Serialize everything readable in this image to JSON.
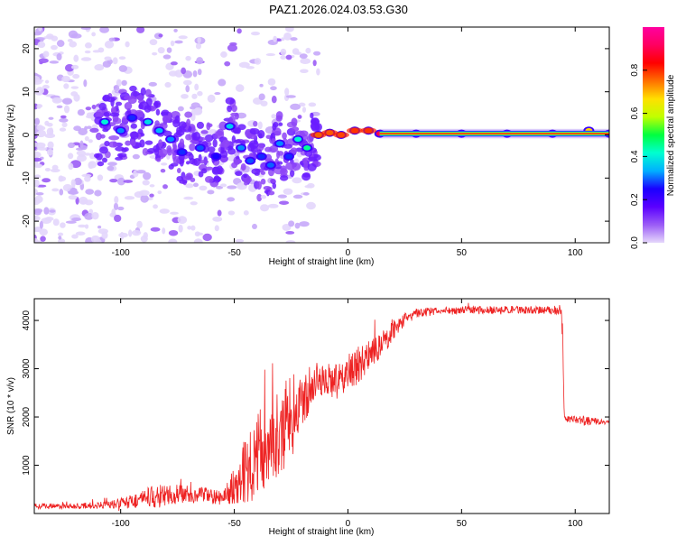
{
  "title": "PAZ1.2026.024.03.53.G30",
  "chart_data": [
    {
      "type": "heatmap",
      "xlabel": "Height of straight line (km)",
      "ylabel": "Frequency (Hz)",
      "xlim": [
        -138,
        115
      ],
      "ylim": [
        -25,
        25
      ],
      "xticks": [
        -100,
        -50,
        0,
        50,
        100
      ],
      "yticks": [
        -20,
        -10,
        0,
        10,
        20
      ],
      "colorbar": {
        "label": "Normalized spectral amplitude",
        "range": [
          0,
          1
        ],
        "ticks": [
          "0.0",
          "0.2",
          "0.4",
          "0.6",
          "0.8"
        ],
        "tick_values": [
          0.0,
          0.2,
          0.4,
          0.6,
          0.8
        ],
        "stops": [
          "#e6d8fb",
          "#9b5cf6",
          "#5a00ff",
          "#1a00ff",
          "#00b0ff",
          "#00ffd0",
          "#00ff40",
          "#c0ff00",
          "#ffe000",
          "#ff7000",
          "#ff0000",
          "#ff0060",
          "#ff00a0"
        ]
      },
      "track": [
        {
          "x": -107,
          "y": 3,
          "v": 0.45
        },
        {
          "x": -100,
          "y": 1,
          "v": 0.35
        },
        {
          "x": -95,
          "y": 4,
          "v": 0.3
        },
        {
          "x": -88,
          "y": 3,
          "v": 0.42
        },
        {
          "x": -83,
          "y": 1,
          "v": 0.38
        },
        {
          "x": -78,
          "y": -1,
          "v": 0.35
        },
        {
          "x": -73,
          "y": -4,
          "v": 0.3
        },
        {
          "x": -65,
          "y": -3,
          "v": 0.32
        },
        {
          "x": -58,
          "y": -5,
          "v": 0.28
        },
        {
          "x": -52,
          "y": 2,
          "v": 0.4
        },
        {
          "x": -47,
          "y": -3,
          "v": 0.35
        },
        {
          "x": -43,
          "y": -6,
          "v": 0.32
        },
        {
          "x": -38,
          "y": -5,
          "v": 0.3
        },
        {
          "x": -34,
          "y": -7,
          "v": 0.33
        },
        {
          "x": -30,
          "y": -2,
          "v": 0.35
        },
        {
          "x": -26,
          "y": -5,
          "v": 0.3
        },
        {
          "x": -22,
          "y": -1,
          "v": 0.45
        },
        {
          "x": -18,
          "y": -3,
          "v": 0.5
        },
        {
          "x": -13,
          "y": 0,
          "v": 0.7
        },
        {
          "x": -8,
          "y": 0.5,
          "v": 0.75
        },
        {
          "x": -3,
          "y": 0,
          "v": 0.8
        },
        {
          "x": 3,
          "y": 1,
          "v": 0.85
        },
        {
          "x": 9,
          "y": 1,
          "v": 0.85
        },
        {
          "x": 14,
          "y": 0.3,
          "v": 1.0
        },
        {
          "x": 30,
          "y": 0.3,
          "v": 1.0
        },
        {
          "x": 50,
          "y": 0.3,
          "v": 1.0
        },
        {
          "x": 70,
          "y": 0.3,
          "v": 1.0
        },
        {
          "x": 90,
          "y": 0.3,
          "v": 1.0
        },
        {
          "x": 106,
          "y": 1,
          "v": 0.75
        },
        {
          "x": 115,
          "y": 0.3,
          "v": 1.0
        }
      ]
    },
    {
      "type": "line",
      "xlabel": "Height of straight line (km)",
      "ylabel": "SNR (10 * v/v)",
      "xlim": [
        -138,
        115
      ],
      "ylim": [
        0,
        4450
      ],
      "xticks": [
        -100,
        -50,
        0,
        50,
        100
      ],
      "yticks": [
        1000,
        2000,
        3000,
        4000
      ],
      "color": "#ee2222",
      "series": [
        {
          "name": "SNR",
          "x": [
            -138,
            -120,
            -105,
            -95,
            -85,
            -75,
            -65,
            -55,
            -50,
            -45,
            -40,
            -35,
            -30,
            -25,
            -22,
            -20,
            -18,
            -15,
            -10,
            -5,
            0,
            5,
            10,
            15,
            20,
            25,
            30,
            40,
            50,
            60,
            70,
            80,
            90,
            94,
            95,
            100,
            105,
            110,
            115
          ],
          "y": [
            150,
            150,
            180,
            250,
            350,
            400,
            380,
            320,
            600,
            900,
            1200,
            1500,
            1700,
            2000,
            2200,
            2300,
            2500,
            2700,
            2800,
            2700,
            2900,
            3100,
            3300,
            3500,
            3800,
            4000,
            4150,
            4200,
            4220,
            4220,
            4220,
            4220,
            4200,
            4200,
            1950,
            1950,
            1920,
            1900,
            1900
          ],
          "noise": [
            60,
            60,
            80,
            150,
            250,
            200,
            180,
            150,
            400,
            700,
            900,
            900,
            900,
            900,
            700,
            500,
            500,
            400,
            300,
            400,
            400,
            400,
            300,
            300,
            200,
            150,
            100,
            80,
            80,
            80,
            80,
            80,
            80,
            80,
            60,
            80,
            120,
            60,
            60
          ]
        }
      ]
    }
  ]
}
